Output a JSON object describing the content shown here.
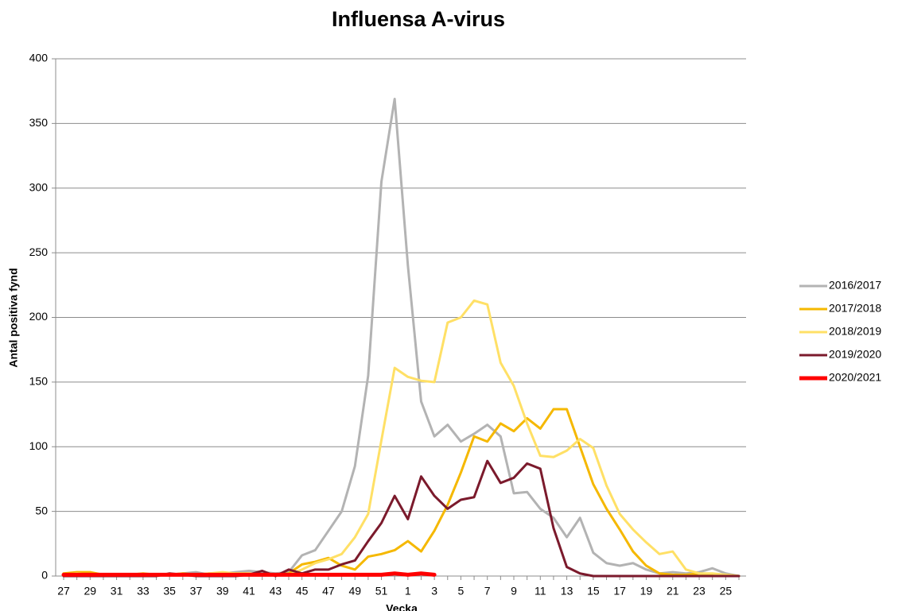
{
  "chart_data": {
    "type": "line",
    "title": "Influensa A-virus",
    "ylabel": "Antal positiva fynd",
    "xlabel": "Vecka",
    "categories": [
      "27",
      null,
      "29",
      null,
      "31",
      null,
      "33",
      null,
      "35",
      null,
      "37",
      null,
      "39",
      null,
      "41",
      null,
      "43",
      null,
      "45",
      null,
      "47",
      null,
      "49",
      null,
      "51",
      null,
      "1",
      null,
      "3",
      null,
      "5",
      null,
      "7",
      null,
      "9",
      null,
      "11",
      null,
      "13",
      null,
      "15",
      null,
      "17",
      null,
      "19",
      null,
      "21",
      null,
      "23",
      null,
      "25",
      null
    ],
    "ylim": [
      0,
      400
    ],
    "yticks": [
      0,
      50,
      100,
      150,
      200,
      250,
      300,
      350,
      400
    ],
    "grid": true,
    "legend": "right",
    "series": [
      {
        "name": "2016/2017",
        "color": "#b3b3b3",
        "values": [
          1,
          1,
          2,
          1,
          1,
          0,
          1,
          1,
          1,
          2,
          3,
          1,
          2,
          3,
          4,
          3,
          2,
          3,
          16,
          20,
          35,
          50,
          85,
          155,
          305,
          369,
          240,
          135,
          108,
          117,
          104,
          110,
          117,
          108,
          64,
          65,
          52,
          45,
          30,
          45,
          18,
          10,
          8,
          10,
          5,
          2,
          3,
          2,
          3,
          6,
          2,
          0
        ]
      },
      {
        "name": "2017/2018",
        "color": "#f5b800",
        "values": [
          2,
          3,
          3,
          1,
          1,
          1,
          2,
          1,
          1,
          2,
          1,
          2,
          2,
          2,
          2,
          1,
          1,
          2,
          9,
          11,
          14,
          8,
          5,
          15,
          17,
          20,
          27,
          19,
          35,
          55,
          80,
          108,
          104,
          118,
          112,
          122,
          114,
          129,
          129,
          100,
          71,
          52,
          36,
          19,
          8,
          2,
          1,
          1,
          2,
          1,
          1,
          0
        ]
      },
      {
        "name": "2018/2019",
        "color": "#ffe066",
        "values": [
          1,
          2,
          1,
          1,
          1,
          0,
          1,
          1,
          1,
          1,
          1,
          2,
          3,
          2,
          2,
          1,
          1,
          1,
          5,
          10,
          13,
          17,
          30,
          48,
          105,
          161,
          154,
          151,
          150,
          196,
          200,
          213,
          210,
          165,
          147,
          118,
          93,
          92,
          97,
          106,
          99,
          70,
          48,
          36,
          26,
          17,
          19,
          5,
          2,
          2,
          1,
          0
        ]
      },
      {
        "name": "2019/2020",
        "color": "#7b1a2c",
        "values": [
          0,
          0,
          0,
          0,
          0,
          0,
          0,
          0,
          2,
          1,
          0,
          0,
          0,
          0,
          1,
          4,
          0,
          5,
          2,
          5,
          5,
          9,
          12,
          27,
          41,
          62,
          44,
          77,
          62,
          52,
          59,
          61,
          89,
          72,
          76,
          87,
          83,
          37,
          7,
          2,
          0,
          0,
          0,
          0,
          0,
          0,
          0,
          0,
          0,
          0,
          0,
          0
        ]
      },
      {
        "name": "2020/2021",
        "color": "#ff0000",
        "width": 5,
        "values": [
          1,
          1,
          1,
          1,
          1,
          1,
          1,
          1,
          1,
          1,
          1,
          1,
          1,
          1,
          1,
          1,
          1,
          1,
          1,
          1,
          1,
          1,
          1,
          1,
          1,
          2,
          1,
          2,
          1,
          null,
          null,
          null,
          null,
          null,
          null,
          null,
          null,
          null,
          null,
          null,
          null,
          null,
          null,
          null,
          null,
          null,
          null,
          null,
          null,
          null,
          null,
          null
        ]
      }
    ]
  }
}
